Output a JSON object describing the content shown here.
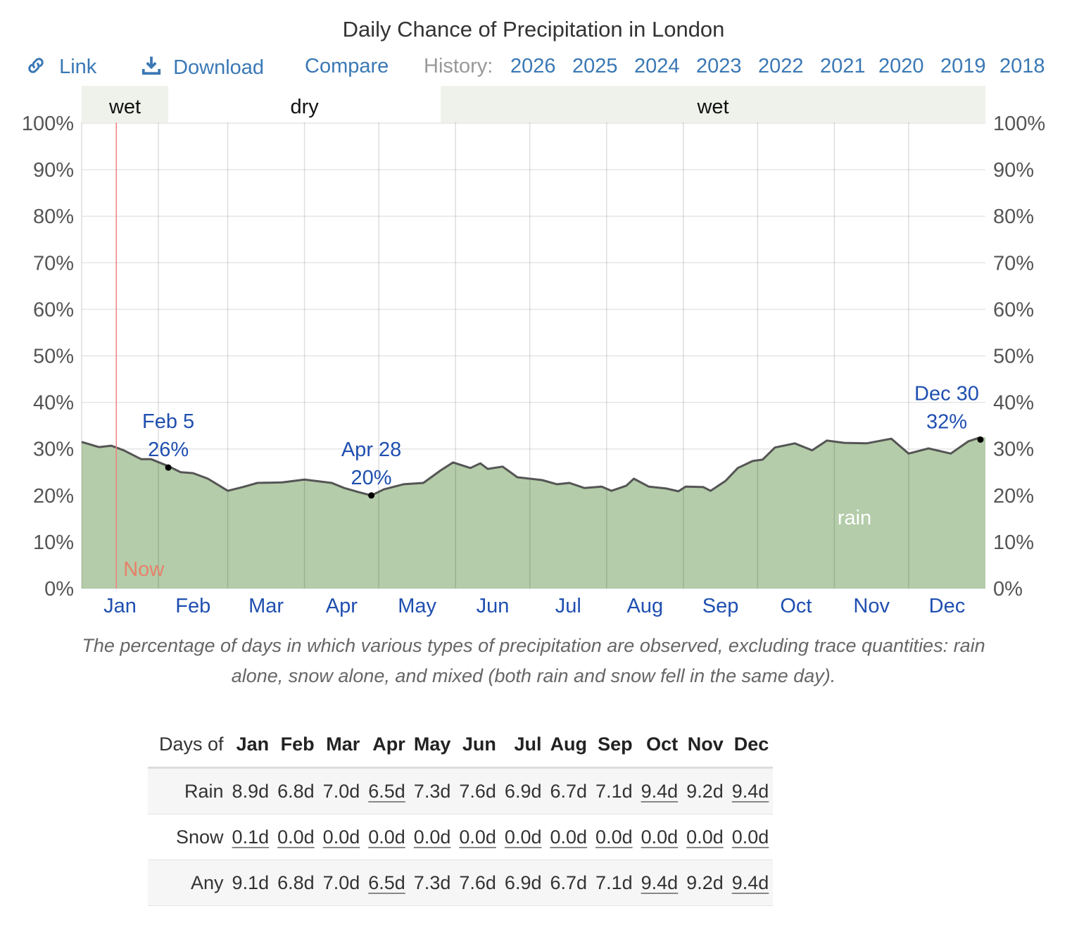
{
  "title": "Daily Chance of Precipitation in London",
  "toolbar": {
    "link": "Link",
    "download": "Download",
    "compare": "Compare",
    "history_label": "History:",
    "years": [
      "2026",
      "2025",
      "2024",
      "2023",
      "2022",
      "2021",
      "2020",
      "2019",
      "2018"
    ]
  },
  "colors": {
    "link": "#3a78b5",
    "fill": "#b4cca9",
    "line": "#555555",
    "now": "#f08080",
    "annotation": "#1f4fb0",
    "band": "#eef2ea"
  },
  "chart_data": {
    "type": "area",
    "title": "Daily Chance of Precipitation in London",
    "ylim": [
      0,
      100
    ],
    "yticks": [
      "0%",
      "10%",
      "20%",
      "30%",
      "40%",
      "50%",
      "60%",
      "70%",
      "80%",
      "90%",
      "100%"
    ],
    "xticks": [
      "Jan",
      "Feb",
      "Mar",
      "Apr",
      "May",
      "Jun",
      "Jul",
      "Aug",
      "Sep",
      "Oct",
      "Nov",
      "Dec"
    ],
    "grid": true,
    "seasons": [
      {
        "label": "wet",
        "from": "01-01",
        "to": "02-05"
      },
      {
        "label": "dry",
        "from": "02-05",
        "to": "05-26"
      },
      {
        "label": "wet",
        "from": "05-26",
        "to": "12-31"
      }
    ],
    "now": {
      "label": "Now",
      "date": "01-15"
    },
    "series": [
      {
        "name": "rain",
        "x": [
          "01-01",
          "01-08",
          "01-13",
          "01-18",
          "01-25",
          "01-29",
          "02-05",
          "02-10",
          "02-15",
          "02-21",
          "03-01",
          "03-07",
          "03-13",
          "03-23",
          "04-01",
          "04-12",
          "04-17",
          "04-23",
          "04-28",
          "05-03",
          "05-11",
          "05-19",
          "05-26",
          "05-31",
          "06-07",
          "06-11",
          "06-14",
          "06-20",
          "06-26",
          "07-06",
          "07-12",
          "07-17",
          "07-23",
          "07-30",
          "08-03",
          "08-09",
          "08-12",
          "08-18",
          "08-25",
          "08-30",
          "09-02",
          "09-09",
          "09-12",
          "09-18",
          "09-23",
          "09-29",
          "10-03",
          "10-08",
          "10-16",
          "10-23",
          "10-29",
          "11-05",
          "11-14",
          "11-24",
          "12-01",
          "12-09",
          "12-18",
          "12-25",
          "12-30"
        ],
        "y": [
          31.5,
          30.4,
          30.7,
          29.7,
          27.8,
          27.8,
          26.3,
          25.0,
          24.8,
          23.6,
          21.0,
          21.8,
          22.7,
          22.8,
          23.4,
          22.7,
          21.6,
          20.7,
          20.0,
          21.3,
          22.4,
          22.7,
          25.4,
          27.1,
          25.9,
          26.9,
          25.7,
          26.2,
          23.9,
          23.3,
          22.4,
          22.7,
          21.6,
          21.9,
          21.0,
          22.1,
          23.6,
          21.9,
          21.5,
          20.9,
          21.9,
          21.8,
          21.0,
          23.1,
          25.9,
          27.4,
          27.7,
          30.3,
          31.2,
          29.7,
          31.8,
          31.3,
          31.2,
          32.2,
          29.0,
          30.1,
          29.0,
          31.6,
          32.5
        ]
      }
    ],
    "annotations": [
      {
        "date": "02-05",
        "line1": "Feb 5",
        "line2": "26%",
        "value": 26
      },
      {
        "date": "04-28",
        "line1": "Apr 28",
        "line2": "20%",
        "value": 20
      },
      {
        "date": "12-30",
        "line1": "Dec 30",
        "line2": "32%",
        "value": 32
      }
    ]
  },
  "caption": "The percentage of days in which various types of precipitation are observed, excluding trace quantities: rain alone, snow alone, and mixed (both rain and snow fell in the same day).",
  "table": {
    "header_label": "Days of",
    "months": [
      "Jan",
      "Feb",
      "Mar",
      "Apr",
      "May",
      "Jun",
      "Jul",
      "Aug",
      "Sep",
      "Oct",
      "Nov",
      "Dec"
    ],
    "rows": [
      {
        "label": "Rain",
        "values": [
          "8.9d",
          "6.8d",
          "7.0d",
          "6.5d",
          "7.3d",
          "7.6d",
          "6.9d",
          "6.7d",
          "7.1d",
          "9.4d",
          "9.2d",
          "9.4d"
        ],
        "underlined": [
          3,
          9,
          11
        ]
      },
      {
        "label": "Snow",
        "values": [
          "0.1d",
          "0.0d",
          "0.0d",
          "0.0d",
          "0.0d",
          "0.0d",
          "0.0d",
          "0.0d",
          "0.0d",
          "0.0d",
          "0.0d",
          "0.0d"
        ],
        "underlined": [
          0,
          1,
          2,
          3,
          4,
          5,
          6,
          7,
          8,
          9,
          10,
          11
        ]
      },
      {
        "label": "Any",
        "values": [
          "9.1d",
          "6.8d",
          "7.0d",
          "6.5d",
          "7.3d",
          "7.6d",
          "6.9d",
          "6.7d",
          "7.1d",
          "9.4d",
          "9.2d",
          "9.4d"
        ],
        "underlined": [
          3,
          9,
          11
        ]
      }
    ]
  }
}
